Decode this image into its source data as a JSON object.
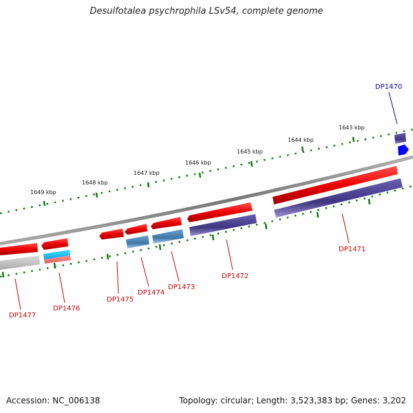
{
  "title": "Desulfotalea psychrophila LSv54, complete genome",
  "footer": {
    "accession": "Accession: NC_006138",
    "topology": "Topology: circular; Length: 3,523,383 bp; Genes: 3,202"
  },
  "ruler": [
    "1643 kbp",
    "1644 kbp",
    "1645 kbp",
    "1646 kbp",
    "1647 kbp",
    "1648 kbp",
    "1649 kbp"
  ],
  "genes": [
    {
      "id": "DP1470",
      "color": "#0000cc"
    },
    {
      "id": "DP1471",
      "color": "#cc0000"
    },
    {
      "id": "DP1472",
      "color": "#cc0000"
    },
    {
      "id": "DP1473",
      "color": "#cc0000"
    },
    {
      "id": "DP1474",
      "color": "#cc0000"
    },
    {
      "id": "DP1475",
      "color": "#cc0000"
    },
    {
      "id": "DP1476",
      "color": "#cc0000"
    },
    {
      "id": "DP1477",
      "color": "#cc0000"
    }
  ],
  "colors": {
    "cds": "#ff0000",
    "gene_purple": "#4a3f8a",
    "gene_steel": "#4f86b8",
    "gene_cyan": "#1ec8f0",
    "gene_grey": "#c0c0c0",
    "gene_blue": "#0000ff",
    "backbone": "#888888",
    "ticks": "#117711"
  }
}
